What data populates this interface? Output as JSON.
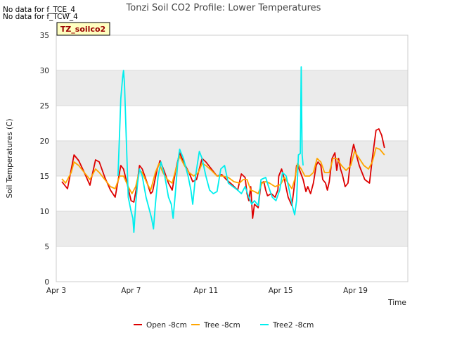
{
  "no_data_messages": [
    "No data for f_TCE_4",
    "No data for f_TCW_4"
  ],
  "site_tag": "TZ_soilco2",
  "colors": {
    "band": "#ebebeb",
    "grid": "#d8d8d8",
    "axis": "#cccccc",
    "tag_bg": "#ffffc0",
    "tag_text": "#990000"
  },
  "chart_data": {
    "type": "line",
    "title": "Tonzi Soil CO2 Profile: Lower Temperatures",
    "xlabel": "Time",
    "ylabel": "Soil Temperatures (C)",
    "xlim": [
      3,
      21.8
    ],
    "ylim": [
      0,
      35
    ],
    "x_unit": "days since Apr 0 (day-of-April)",
    "yticks": [
      0,
      5,
      10,
      15,
      20,
      25,
      30,
      35
    ],
    "xticks": [
      {
        "value": 3,
        "label": "Apr 3"
      },
      {
        "value": 7,
        "label": "Apr 7"
      },
      {
        "value": 11,
        "label": "Apr 11"
      },
      {
        "value": 15,
        "label": "Apr 15"
      },
      {
        "value": 19,
        "label": "Apr 19"
      }
    ],
    "series": [
      {
        "name": "Open -8cm",
        "color": "#dd0000",
        "points": [
          [
            3.3,
            14.2
          ],
          [
            3.6,
            13.2
          ],
          [
            3.95,
            18.0
          ],
          [
            4.2,
            17.2
          ],
          [
            4.5,
            15.5
          ],
          [
            4.8,
            13.7
          ],
          [
            5.1,
            17.3
          ],
          [
            5.3,
            17.0
          ],
          [
            5.6,
            14.8
          ],
          [
            5.9,
            13.0
          ],
          [
            6.15,
            12.0
          ],
          [
            6.45,
            16.5
          ],
          [
            6.6,
            16.0
          ],
          [
            6.8,
            13.8
          ],
          [
            7.0,
            11.5
          ],
          [
            7.15,
            11.3
          ],
          [
            7.3,
            13.5
          ],
          [
            7.45,
            16.5
          ],
          [
            7.6,
            16.0
          ],
          [
            7.8,
            14.5
          ],
          [
            8.05,
            12.5
          ],
          [
            8.15,
            12.8
          ],
          [
            8.4,
            16.0
          ],
          [
            8.55,
            17.2
          ],
          [
            8.8,
            15.5
          ],
          [
            9.0,
            14.0
          ],
          [
            9.2,
            13.0
          ],
          [
            9.4,
            16.0
          ],
          [
            9.6,
            18.3
          ],
          [
            9.8,
            17.0
          ],
          [
            10.1,
            15.5
          ],
          [
            10.3,
            14.2
          ],
          [
            10.5,
            14.5
          ],
          [
            10.8,
            17.5
          ],
          [
            11.0,
            17.0
          ],
          [
            11.3,
            16.0
          ],
          [
            11.6,
            15.0
          ],
          [
            11.85,
            15.2
          ],
          [
            12.1,
            14.5
          ],
          [
            12.4,
            13.8
          ],
          [
            12.7,
            13.0
          ],
          [
            12.9,
            15.3
          ],
          [
            13.1,
            14.8
          ],
          [
            13.2,
            12.5
          ],
          [
            13.3,
            11.5
          ],
          [
            13.4,
            13.5
          ],
          [
            13.5,
            9.0
          ],
          [
            13.6,
            11.0
          ],
          [
            13.8,
            10.5
          ],
          [
            13.95,
            14.0
          ],
          [
            14.1,
            14.2
          ],
          [
            14.2,
            13.0
          ],
          [
            14.3,
            12.2
          ],
          [
            14.5,
            12.5
          ],
          [
            14.7,
            12.0
          ],
          [
            14.85,
            13.0
          ],
          [
            14.9,
            15.0
          ],
          [
            15.05,
            16.0
          ],
          [
            15.2,
            14.5
          ],
          [
            15.4,
            12.0
          ],
          [
            15.6,
            10.8
          ],
          [
            15.75,
            14.0
          ],
          [
            15.85,
            16.5
          ],
          [
            15.95,
            16.3
          ],
          [
            16.2,
            14.5
          ],
          [
            16.35,
            12.8
          ],
          [
            16.45,
            13.5
          ],
          [
            16.6,
            12.5
          ],
          [
            16.75,
            14.0
          ],
          [
            16.9,
            16.5
          ],
          [
            17.0,
            17.0
          ],
          [
            17.15,
            16.5
          ],
          [
            17.25,
            14.5
          ],
          [
            17.4,
            14.0
          ],
          [
            17.5,
            13.0
          ],
          [
            17.6,
            14.2
          ],
          [
            17.75,
            17.5
          ],
          [
            17.9,
            18.3
          ],
          [
            18.0,
            15.8
          ],
          [
            18.1,
            17.5
          ],
          [
            18.2,
            16.0
          ],
          [
            18.3,
            15.2
          ],
          [
            18.45,
            13.5
          ],
          [
            18.6,
            14.0
          ],
          [
            18.75,
            17.5
          ],
          [
            18.9,
            19.5
          ],
          [
            19.0,
            18.5
          ],
          [
            19.2,
            16.5
          ],
          [
            19.5,
            14.5
          ],
          [
            19.75,
            14.0
          ],
          [
            19.9,
            17.5
          ],
          [
            20.1,
            21.5
          ],
          [
            20.25,
            21.7
          ],
          [
            20.4,
            20.8
          ],
          [
            20.55,
            19.0
          ]
        ]
      },
      {
        "name": "Tree -8cm",
        "color": "#ffa500",
        "points": [
          [
            3.3,
            14.6
          ],
          [
            3.5,
            14.0
          ],
          [
            3.8,
            15.5
          ],
          [
            3.95,
            17.0
          ],
          [
            4.2,
            16.5
          ],
          [
            4.5,
            15.5
          ],
          [
            4.8,
            14.5
          ],
          [
            5.1,
            16.0
          ],
          [
            5.3,
            15.5
          ],
          [
            5.6,
            14.5
          ],
          [
            5.9,
            13.5
          ],
          [
            6.15,
            13.2
          ],
          [
            6.4,
            15.0
          ],
          [
            6.6,
            15.0
          ],
          [
            6.85,
            13.5
          ],
          [
            7.05,
            12.5
          ],
          [
            7.25,
            13.5
          ],
          [
            7.45,
            15.8
          ],
          [
            7.6,
            15.5
          ],
          [
            7.85,
            14.0
          ],
          [
            8.05,
            13.0
          ],
          [
            8.3,
            15.5
          ],
          [
            8.5,
            16.8
          ],
          [
            8.7,
            15.5
          ],
          [
            8.95,
            14.5
          ],
          [
            9.2,
            14.0
          ],
          [
            9.4,
            16.0
          ],
          [
            9.6,
            17.8
          ],
          [
            9.85,
            16.5
          ],
          [
            10.1,
            15.5
          ],
          [
            10.35,
            15.0
          ],
          [
            10.6,
            15.5
          ],
          [
            10.8,
            16.8
          ],
          [
            11.0,
            16.5
          ],
          [
            11.3,
            15.8
          ],
          [
            11.6,
            15.0
          ],
          [
            11.9,
            15.0
          ],
          [
            12.2,
            14.8
          ],
          [
            12.5,
            14.2
          ],
          [
            12.8,
            14.0
          ],
          [
            13.0,
            14.5
          ],
          [
            13.2,
            14.5
          ],
          [
            13.4,
            13.0
          ],
          [
            13.6,
            12.8
          ],
          [
            13.8,
            12.5
          ],
          [
            14.0,
            14.0
          ],
          [
            14.2,
            14.2
          ],
          [
            14.4,
            14.0
          ],
          [
            14.7,
            13.5
          ],
          [
            15.0,
            13.8
          ],
          [
            15.2,
            14.8
          ],
          [
            15.4,
            14.0
          ],
          [
            15.6,
            13.2
          ],
          [
            15.75,
            14.5
          ],
          [
            15.9,
            16.8
          ],
          [
            16.1,
            16.0
          ],
          [
            16.3,
            15.0
          ],
          [
            16.55,
            15.0
          ],
          [
            16.75,
            15.5
          ],
          [
            16.95,
            17.5
          ],
          [
            17.15,
            17.0
          ],
          [
            17.35,
            15.5
          ],
          [
            17.6,
            15.5
          ],
          [
            17.8,
            17.5
          ],
          [
            18.0,
            17.5
          ],
          [
            18.25,
            16.5
          ],
          [
            18.5,
            15.8
          ],
          [
            18.75,
            16.5
          ],
          [
            18.95,
            18.5
          ],
          [
            19.2,
            17.5
          ],
          [
            19.45,
            16.5
          ],
          [
            19.7,
            16.0
          ],
          [
            19.9,
            17.0
          ],
          [
            20.1,
            19.0
          ],
          [
            20.3,
            18.8
          ],
          [
            20.55,
            18.0
          ]
        ]
      },
      {
        "name": "Tree2 -8cm",
        "color": "#00eeee",
        "points": [
          [
            6.3,
            15.0
          ],
          [
            6.4,
            22.0
          ],
          [
            6.45,
            26.0
          ],
          [
            6.55,
            29.0
          ],
          [
            6.6,
            30.0
          ],
          [
            6.65,
            28.0
          ],
          [
            6.75,
            20.0
          ],
          [
            6.85,
            12.0
          ],
          [
            7.0,
            10.0
          ],
          [
            7.1,
            9.0
          ],
          [
            7.15,
            7.0
          ],
          [
            7.25,
            11.0
          ],
          [
            7.35,
            14.0
          ],
          [
            7.45,
            16.0
          ],
          [
            7.6,
            15.0
          ],
          [
            7.8,
            12.0
          ],
          [
            8.0,
            10.0
          ],
          [
            8.1,
            9.0
          ],
          [
            8.2,
            7.5
          ],
          [
            8.3,
            11.0
          ],
          [
            8.45,
            15.0
          ],
          [
            8.6,
            17.0
          ],
          [
            8.8,
            15.0
          ],
          [
            9.0,
            12.0
          ],
          [
            9.15,
            11.0
          ],
          [
            9.25,
            9.0
          ],
          [
            9.35,
            12.0
          ],
          [
            9.5,
            17.0
          ],
          [
            9.6,
            18.8
          ],
          [
            9.8,
            17.5
          ],
          [
            10.05,
            15.0
          ],
          [
            10.2,
            13.0
          ],
          [
            10.3,
            11.0
          ],
          [
            10.45,
            15.0
          ],
          [
            10.65,
            18.5
          ],
          [
            10.8,
            17.5
          ],
          [
            11.0,
            15.0
          ],
          [
            11.2,
            13.0
          ],
          [
            11.4,
            12.5
          ],
          [
            11.6,
            12.8
          ],
          [
            11.8,
            16.0
          ],
          [
            12.0,
            16.5
          ],
          [
            12.2,
            14.0
          ],
          [
            12.45,
            13.5
          ],
          [
            12.7,
            13.0
          ],
          [
            12.9,
            12.5
          ],
          [
            13.1,
            13.5
          ],
          [
            13.3,
            12.0
          ],
          [
            13.45,
            11.0
          ],
          [
            13.6,
            11.5
          ],
          [
            13.8,
            10.8
          ],
          [
            13.95,
            14.5
          ],
          [
            14.2,
            14.8
          ],
          [
            14.35,
            13.5
          ],
          [
            14.55,
            12.0
          ],
          [
            14.75,
            11.5
          ],
          [
            14.95,
            13.0
          ],
          [
            15.1,
            15.5
          ],
          [
            15.3,
            15.0
          ],
          [
            15.5,
            12.5
          ],
          [
            15.65,
            10.5
          ],
          [
            15.75,
            9.5
          ],
          [
            15.85,
            11.5
          ],
          [
            15.95,
            18.0
          ],
          [
            16.05,
            18.2
          ],
          [
            16.1,
            30.5
          ],
          [
            16.15,
            18.0
          ],
          [
            16.2,
            16.5
          ]
        ]
      }
    ],
    "legend": {
      "placement": "bottom-center",
      "entries": [
        "Open -8cm",
        "Tree -8cm",
        "Tree2 -8cm"
      ]
    }
  }
}
